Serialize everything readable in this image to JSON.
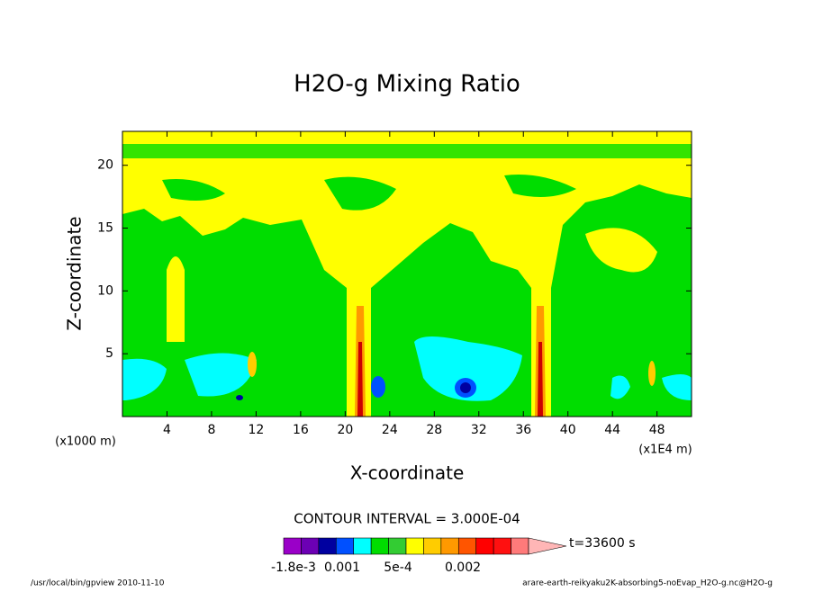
{
  "chart_data": {
    "type": "contour",
    "title": "H2O-g Mixing Ratio",
    "x_label": "X-coordinate",
    "y_label": "Z-coordinate",
    "x_unit_label": "(x1000 m)",
    "x_unit_label2": "(x1E4 m)",
    "xlim": [
      0,
      51.1
    ],
    "xticks": [
      4,
      8,
      12,
      16,
      20,
      24,
      28,
      32,
      36,
      40,
      44,
      48
    ],
    "ylim": [
      0,
      22.7
    ],
    "yticks": [
      5,
      10,
      15,
      20
    ],
    "contour_interval": "CONTOUR INTERVAL = 3.000E-04",
    "colorbar_colors": [
      "#9a00c8",
      "#6c00b4",
      "#0000a0",
      "#0050ff",
      "#00ffff",
      "#00dd00",
      "#33cc33",
      "#ffff00",
      "#ffcc00",
      "#ff9900",
      "#ff5500",
      "#ff0000",
      "#ff1010",
      "#ff7a7a",
      "#ffb6b6"
    ],
    "colorbar_labels": [
      "-1.8e-3",
      "0.001",
      "5e-4",
      "0.002"
    ],
    "time_label": "t=33600 s",
    "footer_left": "/usr/local/bin/gpview  2010-11-10",
    "footer_right": "arare-earth-reikyaku2K-absorbing5-noEvap_H2O-g.nc@H2O-g"
  }
}
